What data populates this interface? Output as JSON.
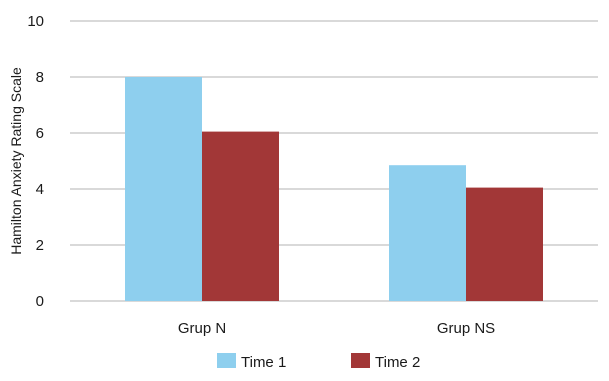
{
  "chart_data": {
    "type": "bar",
    "title": "",
    "xlabel": "",
    "ylabel": "Hamilton Anxiety Rating Scale",
    "categories": [
      "Grup N",
      "Grup NS"
    ],
    "series": [
      {
        "name": "Time 1",
        "color": "#8ecfee",
        "values": [
          8.0,
          4.85
        ]
      },
      {
        "name": "Time 2",
        "color": "#a23737",
        "values": [
          6.05,
          4.05
        ]
      }
    ],
    "ylim": [
      0,
      10
    ],
    "yticks": [
      "0",
      "2",
      "4",
      "6",
      "8",
      "10"
    ],
    "grid": true,
    "legend_position": "bottom-center"
  }
}
